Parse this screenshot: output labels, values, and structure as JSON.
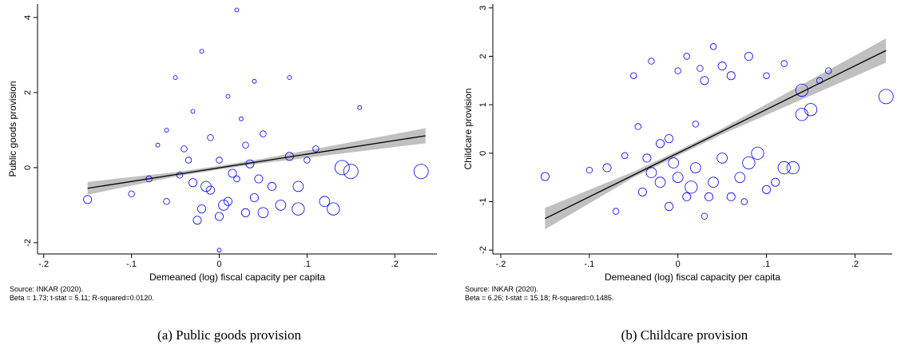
{
  "chart_data": [
    {
      "type": "scatter",
      "caption": "(a) Public goods provision",
      "xlabel": "Demeaned (log) fiscal capacity per capita",
      "ylabel": "Public goods provision",
      "notes": [
        "Source: INKAR (2020).",
        "Beta =  1.73; t-stat =  5.11; R-squared=0.0120."
      ],
      "xlim": [
        -0.207,
        0.248
      ],
      "ylim": [
        -2.3,
        4.36
      ],
      "xticks": [
        {
          "value": -0.2,
          "label": "-.2"
        },
        {
          "value": -0.1,
          "label": "-.1"
        },
        0,
        {
          "value": 0.1,
          "label": ".1"
        },
        {
          "value": 0.2,
          "label": ".2"
        }
      ],
      "yticks": [
        -2,
        0,
        2,
        4
      ],
      "series": [
        {
          "color": "#0000ff",
          "x": [
            -0.15,
            -0.1,
            -0.08,
            -0.06,
            -0.05,
            -0.04,
            -0.03,
            -0.03,
            -0.02,
            -0.02,
            -0.01,
            -0.01,
            0,
            0,
            0,
            0.01,
            0.01,
            0.02,
            0.02,
            0.03,
            0.03,
            0.04,
            0.04,
            0.05,
            0.05,
            0.06,
            0.07,
            0.08,
            0.08,
            0.09,
            0.09,
            0.11,
            0.12,
            0.13,
            0.14,
            0.15,
            0.16,
            0.23,
            -0.045,
            -0.06,
            -0.035,
            0.015,
            0.025,
            -0.015,
            0.005,
            0.045,
            -0.025,
            0.035,
            0.1,
            -0.07
          ],
          "values": [
            -0.85,
            -0.7,
            -0.3,
            1.0,
            2.4,
            0.5,
            -0.4,
            1.5,
            -1.1,
            3.1,
            -0.6,
            0.8,
            -1.3,
            -2.2,
            0.2,
            1.9,
            -0.9,
            -0.3,
            4.2,
            -1.2,
            0.6,
            2.3,
            -0.8,
            -1.2,
            0.9,
            -0.5,
            -1.0,
            2.4,
            0.3,
            -1.1,
            -0.5,
            0.5,
            -0.9,
            -1.1,
            0,
            -0.1,
            1.6,
            -0.1,
            -0.2,
            -0.9,
            0.2,
            -0.15,
            1.3,
            -0.5,
            -1.0,
            -0.3,
            -1.4,
            0.1,
            0.2,
            0.6
          ],
          "sizes": [
            3,
            2,
            2,
            1,
            1,
            2,
            3,
            1,
            3,
            1,
            3,
            2,
            3,
            1,
            2,
            1,
            3,
            2,
            1,
            3,
            2,
            1,
            3,
            4,
            2,
            3,
            4,
            1,
            3,
            5,
            4,
            2,
            4,
            5,
            6,
            6,
            1,
            6,
            2,
            2,
            2,
            3,
            1,
            4,
            4,
            3,
            3,
            3,
            2,
            1
          ]
        }
      ],
      "fit": {
        "color": "#000000",
        "x": [
          -0.15,
          0.235
        ],
        "y": [
          -0.55,
          0.85
        ]
      },
      "ci": {
        "color": "#c0c0c0",
        "x": [
          -0.15,
          -0.05,
          0,
          0.05,
          0.235
        ],
        "lower": [
          -0.72,
          -0.24,
          -0.05,
          0.12,
          0.65
        ],
        "upper": [
          -0.38,
          -0.12,
          0.05,
          0.24,
          1.05
        ]
      }
    },
    {
      "type": "scatter",
      "caption": "(b) Childcare provision",
      "xlabel": "Demeaned (log) fiscal capacity per capita",
      "ylabel": "Childcare provision",
      "notes": [
        "Source: INKAR (2020).",
        "Beta =  6.26; t-stat = 15.18; R-squared=0.1485."
      ],
      "xlim": [
        -0.209,
        0.242
      ],
      "ylim": [
        -2.08,
        3.08
      ],
      "xticks": [
        {
          "value": -0.2,
          "label": "-.2"
        },
        {
          "value": -0.1,
          "label": "-.1"
        },
        0,
        {
          "value": 0.1,
          "label": ".1"
        },
        {
          "value": 0.2,
          "label": ".2"
        }
      ],
      "yticks": [
        -2,
        -1,
        0,
        1,
        2,
        3
      ],
      "series": [
        {
          "color": "#0000ff",
          "x": [
            -0.15,
            -0.1,
            -0.08,
            -0.07,
            -0.05,
            -0.04,
            -0.03,
            -0.03,
            -0.02,
            -0.01,
            -0.01,
            0,
            0,
            0.01,
            0.01,
            0.02,
            0.02,
            0.03,
            0.03,
            0.04,
            0.04,
            0.05,
            0.05,
            0.06,
            0.06,
            0.07,
            0.08,
            0.08,
            0.09,
            0.1,
            0.1,
            0.11,
            0.12,
            0.13,
            0.14,
            0.14,
            0.15,
            0.16,
            0.17,
            0.235,
            -0.06,
            -0.045,
            0.075,
            -0.02,
            0.015,
            -0.005,
            0.035,
            0.025,
            -0.035,
            0.12
          ],
          "values": [
            -0.48,
            -0.35,
            -0.3,
            -1.2,
            1.6,
            -0.8,
            1.9,
            -0.4,
            -0.6,
            -1.1,
            0.3,
            -0.5,
            1.7,
            -0.9,
            2.0,
            -0.3,
            0.6,
            -1.3,
            1.5,
            -0.6,
            2.2,
            -0.1,
            1.8,
            -0.9,
            1.6,
            -0.5,
            2.0,
            -0.2,
            0,
            1.6,
            -0.75,
            -0.6,
            -0.3,
            -0.3,
            0.8,
            1.3,
            0.9,
            1.5,
            1.7,
            1.17,
            -0.05,
            0.55,
            -1.0,
            0.2,
            -0.7,
            -0.2,
            -0.9,
            1.75,
            -0.1,
            1.85
          ],
          "sizes": [
            3,
            2,
            3,
            2,
            2,
            3,
            2,
            4,
            4,
            3,
            3,
            4,
            2,
            3,
            2,
            4,
            2,
            2,
            3,
            4,
            2,
            4,
            3,
            3,
            3,
            4,
            3,
            5,
            5,
            2,
            3,
            3,
            5,
            5,
            5,
            5,
            5,
            2,
            2,
            6,
            2,
            2,
            2,
            3,
            5,
            4,
            3,
            2,
            3,
            2
          ]
        }
      ],
      "fit": {
        "color": "#000000",
        "x": [
          -0.15,
          0.235
        ],
        "y": [
          -1.35,
          2.12
        ]
      },
      "ci": {
        "color": "#c0c0c0",
        "x": [
          -0.15,
          -0.05,
          0,
          0.05,
          0.235
        ],
        "lower": [
          -1.57,
          -0.5,
          -0.05,
          0.39,
          1.87
        ],
        "upper": [
          -1.13,
          -0.38,
          0.05,
          0.51,
          2.37
        ]
      }
    }
  ]
}
